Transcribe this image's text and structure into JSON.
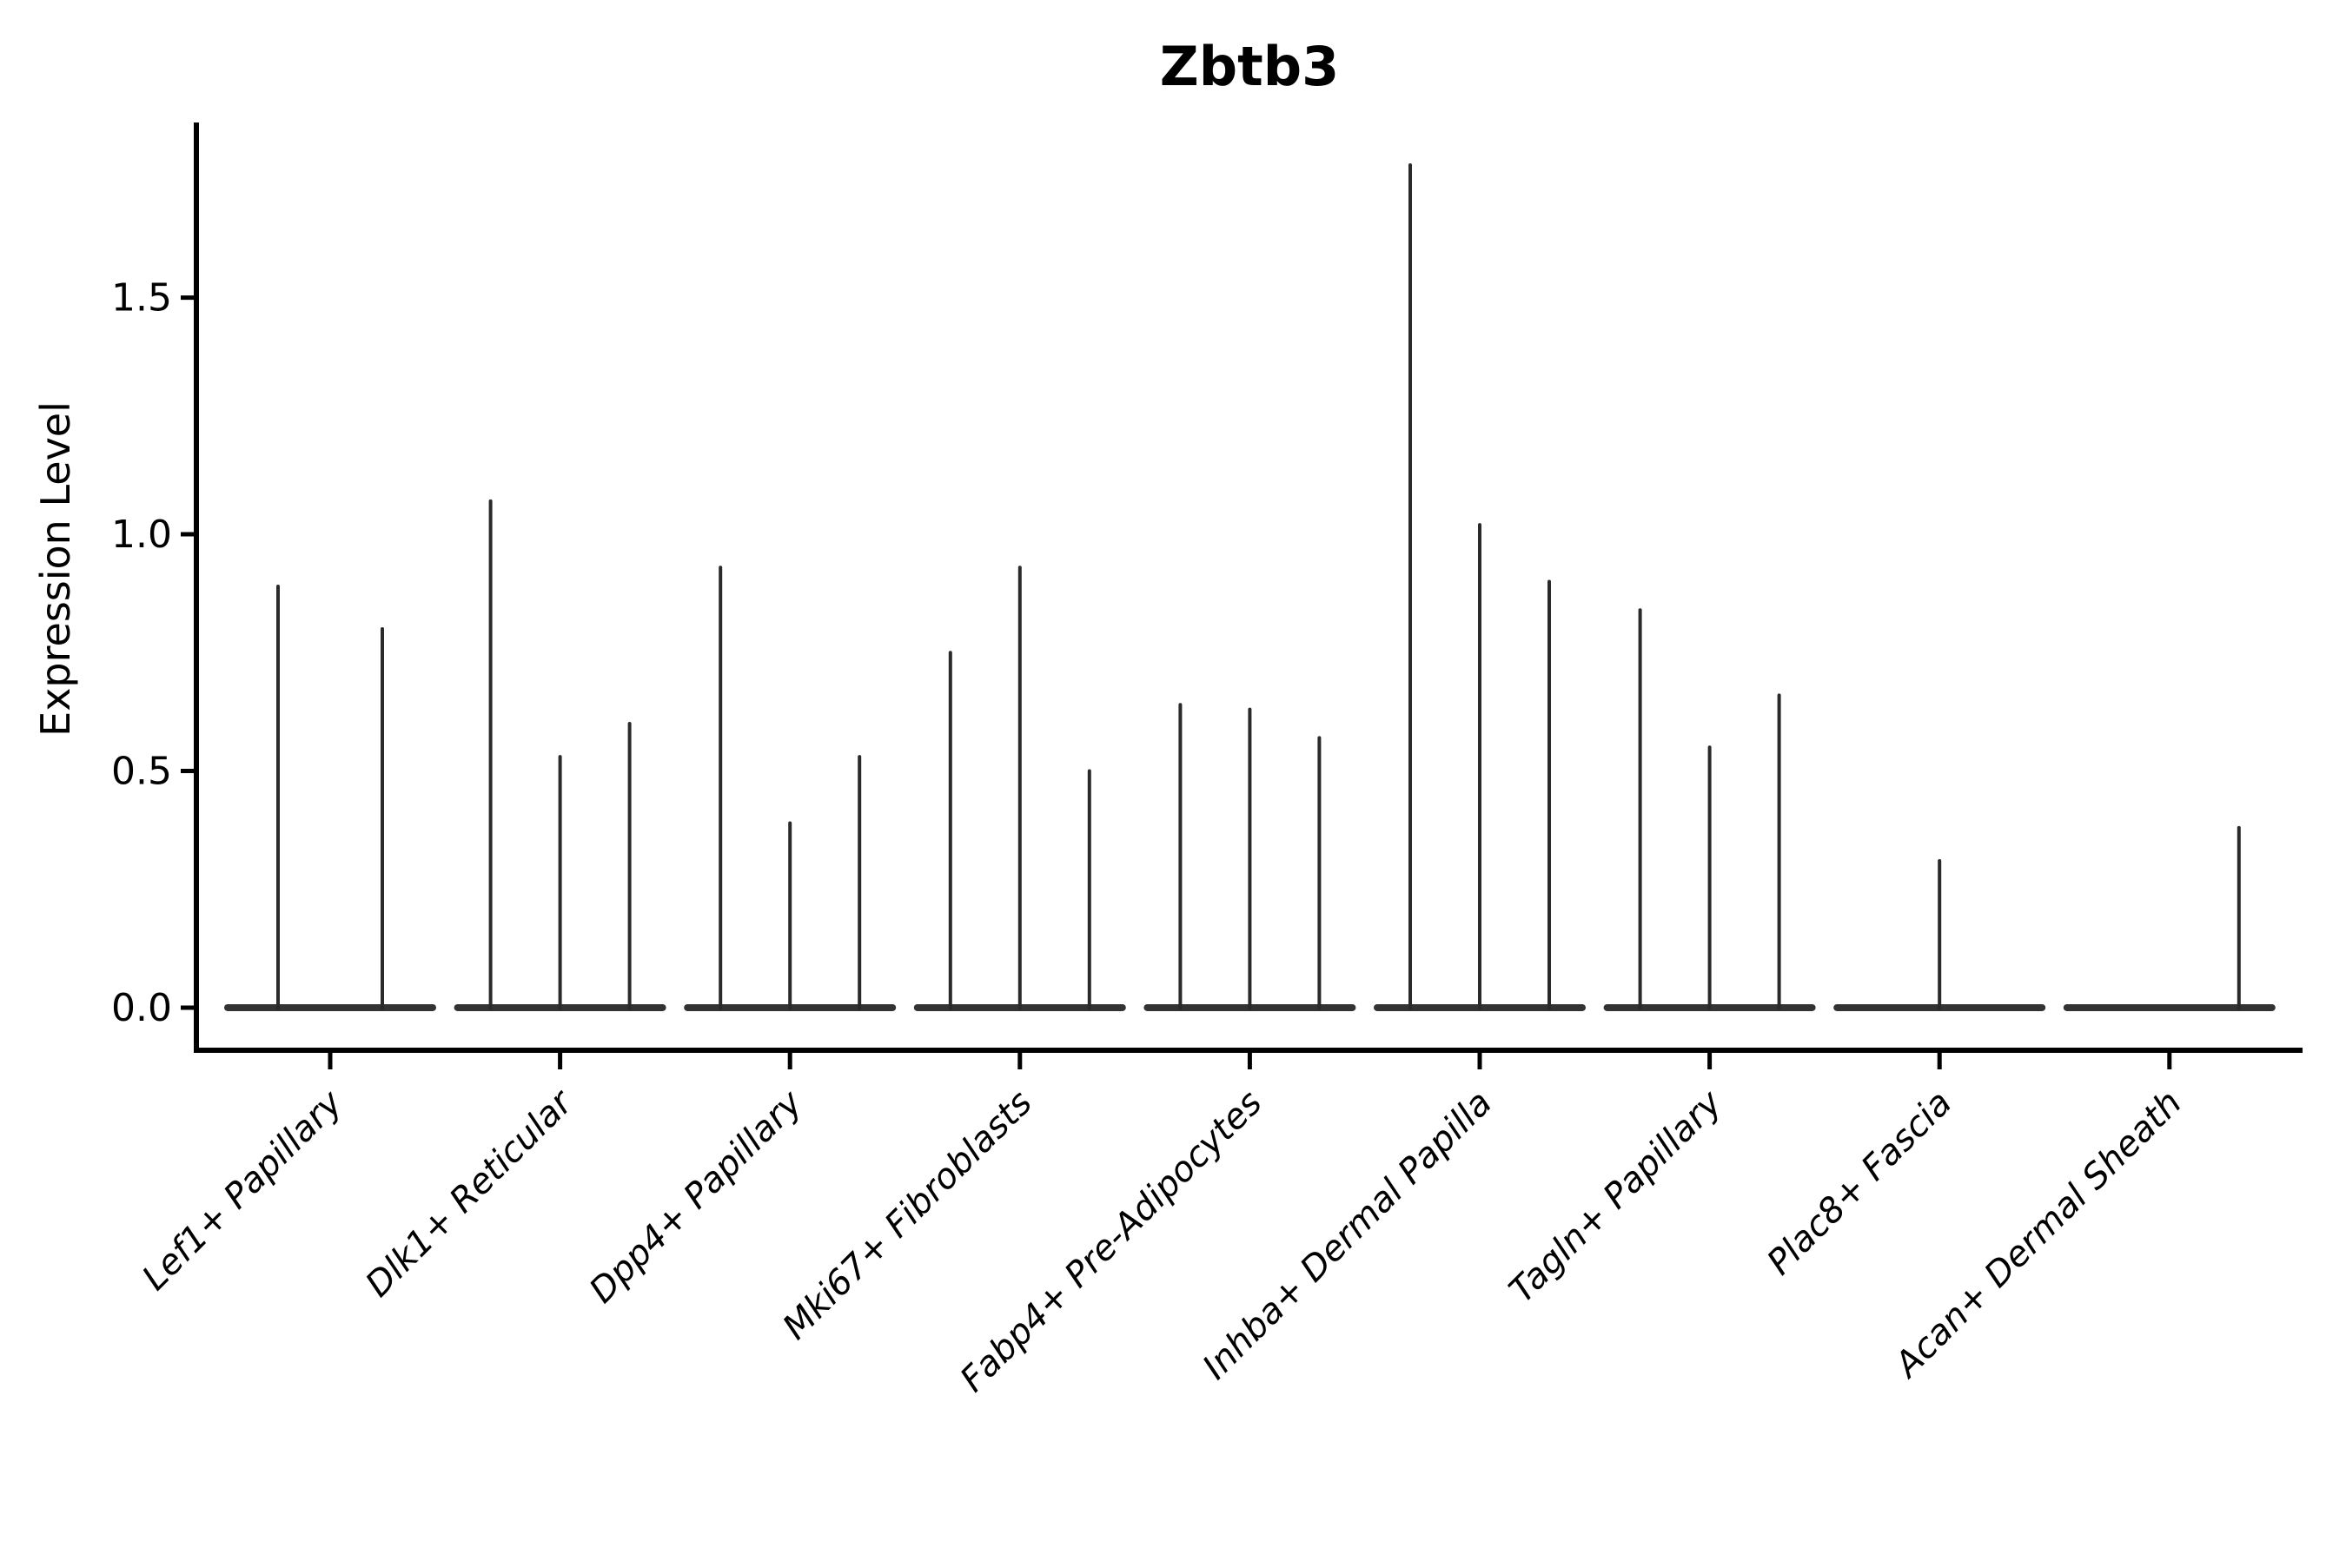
{
  "chart_data": {
    "type": "violin",
    "title": "Zbtb3",
    "ylabel": "Expression Level",
    "xlabel": "",
    "grid": false,
    "legend": null,
    "ytick_labels": [
      "0.0",
      "0.5",
      "1.0",
      "1.5"
    ],
    "ytick_values": [
      0,
      0.5,
      1.0,
      1.5
    ],
    "ylim": [
      -0.09,
      1.87
    ],
    "colors": {
      "violin_line": "#2a2a2a",
      "violin_baseline": "#333333",
      "axis": "#000000",
      "background": "#ffffff"
    },
    "categories": [
      "Lef1+ Papillary",
      "Dlk1+ Reticular",
      "Dpp4+ Papillary",
      "Mki67+ Fibroblasts",
      "Fabp4+ Pre-Adipocytes",
      "Inhba+ Dermal Papilla",
      "Tagln+ Papillary",
      "Plac8+ Fascia",
      "Acan+ Dermal Sheath"
    ],
    "groups": [
      {
        "label": "Lef1+ Papillary",
        "n_slots": 2,
        "violins": [
          {
            "slot": 0,
            "max_expression": 0.89
          },
          {
            "slot": 1,
            "max_expression": 0.8
          }
        ]
      },
      {
        "label": "Dlk1+ Reticular",
        "n_slots": 3,
        "violins": [
          {
            "slot": 0,
            "max_expression": 1.07
          },
          {
            "slot": 1,
            "max_expression": 0.53
          },
          {
            "slot": 2,
            "max_expression": 0.6
          }
        ]
      },
      {
        "label": "Dpp4+ Papillary",
        "n_slots": 3,
        "violins": [
          {
            "slot": 0,
            "max_expression": 0.93
          },
          {
            "slot": 1,
            "max_expression": 0.39
          },
          {
            "slot": 2,
            "max_expression": 0.53
          }
        ]
      },
      {
        "label": "Mki67+ Fibroblasts",
        "n_slots": 3,
        "violins": [
          {
            "slot": 0,
            "max_expression": 0.75
          },
          {
            "slot": 1,
            "max_expression": 0.93
          },
          {
            "slot": 2,
            "max_expression": 0.5
          }
        ]
      },
      {
        "label": "Fabp4+ Pre-Adipocytes",
        "n_slots": 3,
        "violins": [
          {
            "slot": 0,
            "max_expression": 0.64
          },
          {
            "slot": 1,
            "max_expression": 0.63
          },
          {
            "slot": 2,
            "max_expression": 0.57
          }
        ]
      },
      {
        "label": "Inhba+ Dermal Papilla",
        "n_slots": 3,
        "violins": [
          {
            "slot": 0,
            "max_expression": 1.78
          },
          {
            "slot": 1,
            "max_expression": 1.02
          },
          {
            "slot": 2,
            "max_expression": 0.9
          }
        ]
      },
      {
        "label": "Tagln+ Papillary",
        "n_slots": 3,
        "violins": [
          {
            "slot": 0,
            "max_expression": 0.84
          },
          {
            "slot": 1,
            "max_expression": 0.55
          },
          {
            "slot": 2,
            "max_expression": 0.66
          }
        ]
      },
      {
        "label": "Plac8+ Fascia",
        "n_slots": 3,
        "violins": [
          {
            "slot": 1,
            "max_expression": 0.31
          }
        ]
      },
      {
        "label": "Acan+ Dermal Sheath",
        "n_slots": 3,
        "violins": [
          {
            "slot": 2,
            "max_expression": 0.38
          }
        ]
      }
    ]
  }
}
